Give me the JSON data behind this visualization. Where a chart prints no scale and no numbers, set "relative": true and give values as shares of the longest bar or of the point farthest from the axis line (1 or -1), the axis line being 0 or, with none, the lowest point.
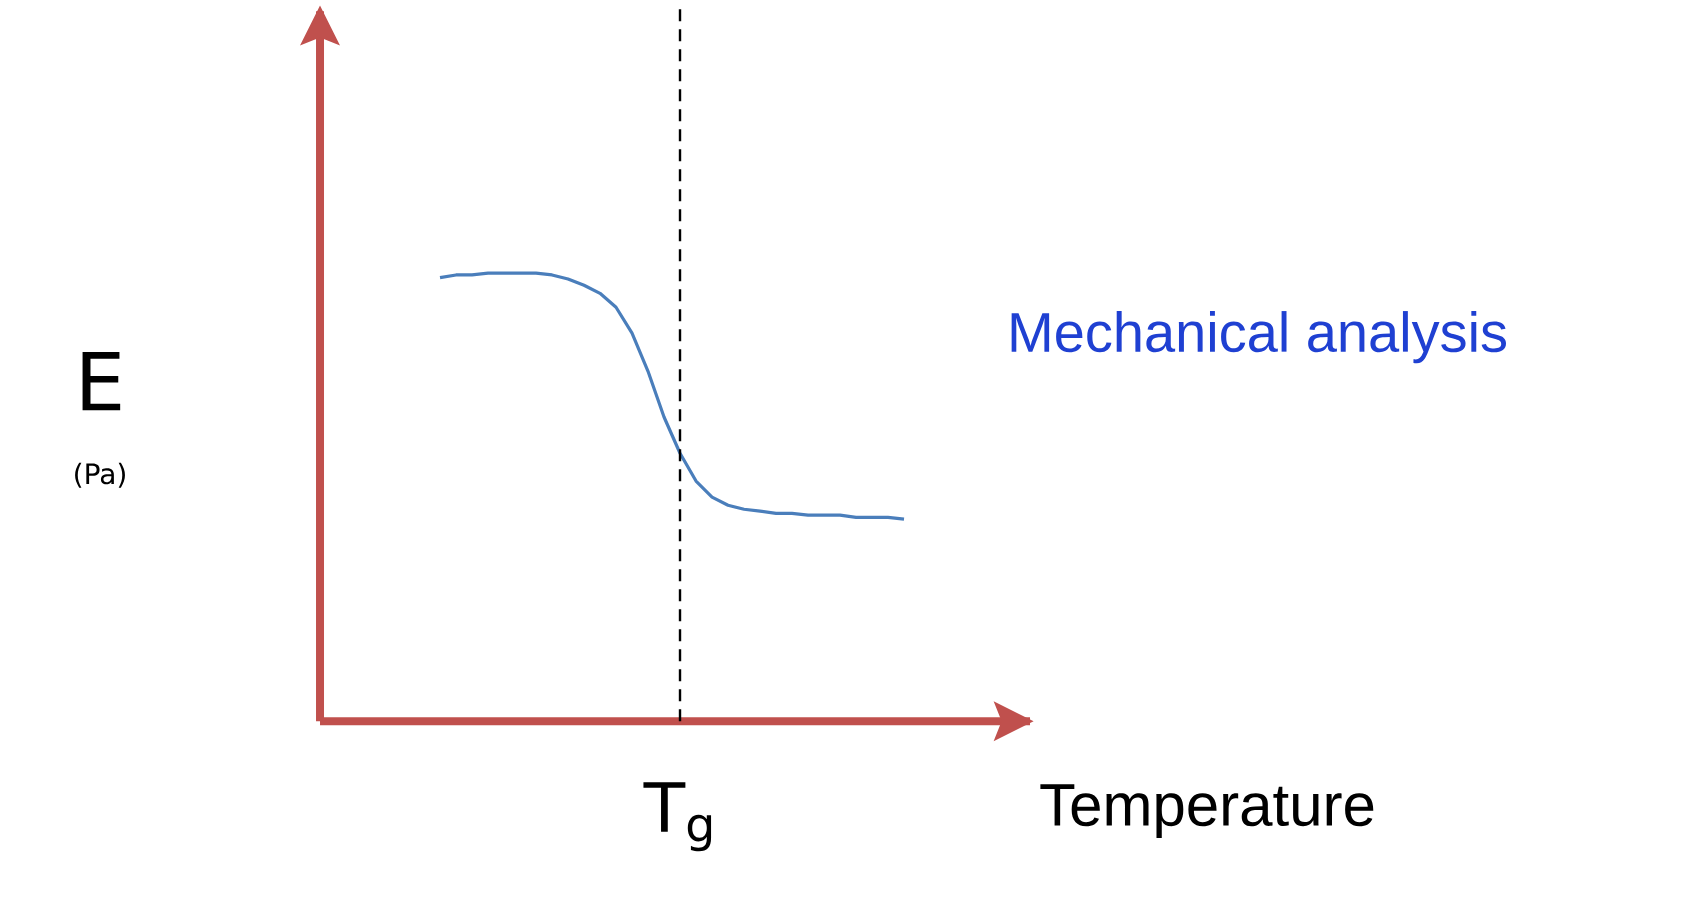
{
  "chart_data": {
    "type": "line",
    "relative": true,
    "ylabel": "E",
    "xlabel": "Temperature",
    "marker": "none",
    "line_style": "solid",
    "categories": [
      null,
      null,
      null,
      null,
      null,
      null,
      null,
      null,
      null,
      null,
      null,
      null,
      null,
      null,
      null,
      null,
      null,
      null,
      null,
      null,
      null,
      null,
      null,
      null,
      null,
      null,
      null,
      null,
      null,
      null
    ],
    "series": [
      {
        "color": "#4a7ebb",
        "values": [
          0.99,
          0.996,
          0.996,
          1,
          1,
          1,
          1,
          0.996,
          0.987,
          0.973,
          0.955,
          0.924,
          0.866,
          0.781,
          0.679,
          0.598,
          0.536,
          0.5,
          0.482,
          0.473,
          0.469,
          0.464,
          0.464,
          0.46,
          0.46,
          0.46,
          0.455,
          0.455,
          0.455,
          0.451
        ]
      }
    ],
    "annotations": [
      "(Pa)",
      "Mechanical analysis",
      "T$_{g}$"
    ]
  }
}
